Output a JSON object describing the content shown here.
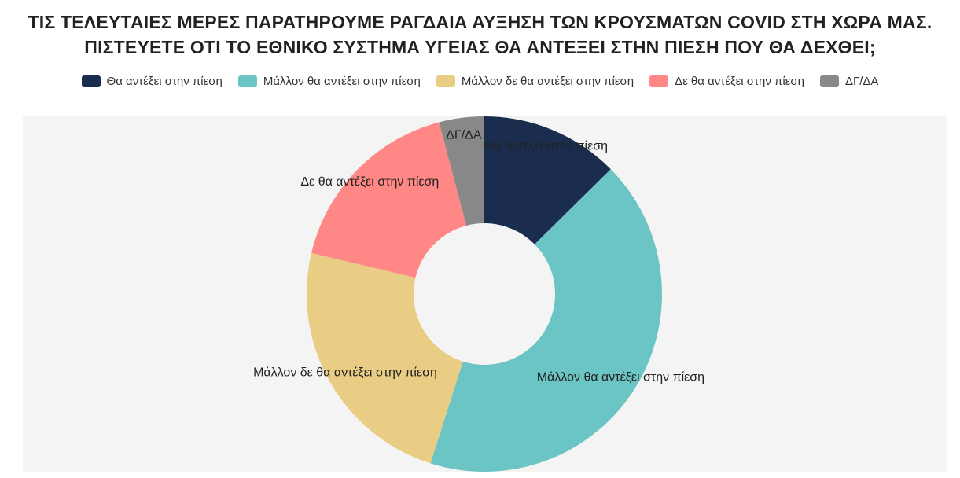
{
  "header": {
    "title_line1": "ΤΙΣ ΤΕΛΕΥΤΑΙΕΣ ΜΕΡΕΣ ΠΑΡΑΤΗΡΟΥΜΕ ΡΑΓΔΑΙΑ ΑΥΞΗΣΗ ΤΩΝ ΚΡΟΥΣΜΑΤΩΝ COVID ΣΤΗ ΧΩΡΑ ΜΑΣ.",
    "title_line2": "ΠΙΣΤΕΥΕΤΕ ΟΤΙ ΤΟ ΕΘΝΙΚΟ ΣΥΣΤΗΜΑ ΥΓΕΙΑΣ ΘΑ ΑΝΤΕΞΕΙ ΣΤΗΝ ΠΙΕΣΗ ΠΟΥ ΘΑ ΔΕΧΘΕΙ;"
  },
  "chart_data": {
    "type": "pie",
    "variant": "doughnut",
    "title": "ΤΙΣ ΤΕΛΕΥΤΑΙΕΣ ΜΕΡΕΣ ΠΑΡΑΤΗΡΟΥΜΕ ΡΑΓΔΑΙΑ ΑΥΞΗΣΗ ΤΩΝ ΚΡΟΥΣΜΑΤΩΝ COVID ΣΤΗ ΧΩΡΑ ΜΑΣ. ΠΙΣΤΕΥΕΤΕ ΟΤΙ ΤΟ ΕΘΝΙΚΟ ΣΥΣΤΗΜΑ ΥΓΕΙΑΣ ΘΑ ΑΝΤΕΞΕΙ ΣΤΗΝ ΠΙΕΣΗ ΠΟΥ ΘΑ ΔΕΧΘΕΙ;",
    "legend_position": "top",
    "slices": [
      {
        "label": "Θα αντέξει στην πίεση",
        "value": 12.6,
        "color": "#1b2d4f"
      },
      {
        "label": "Μάλλον θα αντέξει στην πίεση",
        "value": 42.3,
        "color": "#6cc5c5"
      },
      {
        "label": "Μάλλον δε θα αντέξει στην πίεση",
        "value": 23.8,
        "color": "#eacd84"
      },
      {
        "label": "Δε θα αντέξει στην πίεση",
        "value": 17.2,
        "color": "#ff8886"
      },
      {
        "label": "ΔΓ/ΔΑ",
        "value": 4.1,
        "color": "#888888"
      }
    ]
  }
}
